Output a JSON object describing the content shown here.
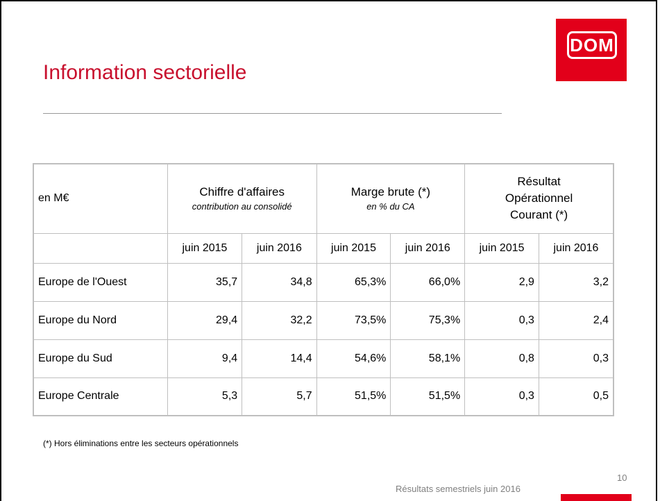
{
  "header": {
    "logo": "DOM",
    "title": "Information sectorielle"
  },
  "table": {
    "corner": "en M€",
    "groups": [
      {
        "title": "Chiffre d'affaires",
        "subtitle": "contribution au consolidé"
      },
      {
        "title": "Marge brute (*)",
        "subtitle": "en % du CA"
      },
      {
        "title": "Résultat Opérationnel Courant (*)"
      }
    ],
    "subheaders": [
      "juin 2015",
      "juin 2016",
      "juin 2015",
      "juin 2016",
      "juin 2015",
      "juin 2016"
    ],
    "rows": [
      [
        "Europe de l'Ouest",
        "35,7",
        "34,8",
        "65,3%",
        "66,0%",
        "2,9",
        "3,2"
      ],
      [
        "Europe du Nord",
        "29,4",
        "32,2",
        "73,5%",
        "75,3%",
        "0,3",
        "2,4"
      ],
      [
        "Europe du Sud",
        "9,4",
        "14,4",
        "54,6%",
        "58,1%",
        "0,8",
        "0,3"
      ],
      [
        "Europe Centrale",
        "5,3",
        "5,7",
        "51,5%",
        "51,5%",
        "0,3",
        "0,5"
      ]
    ]
  },
  "footnote": "(*) Hors éliminations entre les secteurs opérationnels",
  "footer": {
    "text": "Résultats semestriels juin 2016",
    "page": "10"
  }
}
